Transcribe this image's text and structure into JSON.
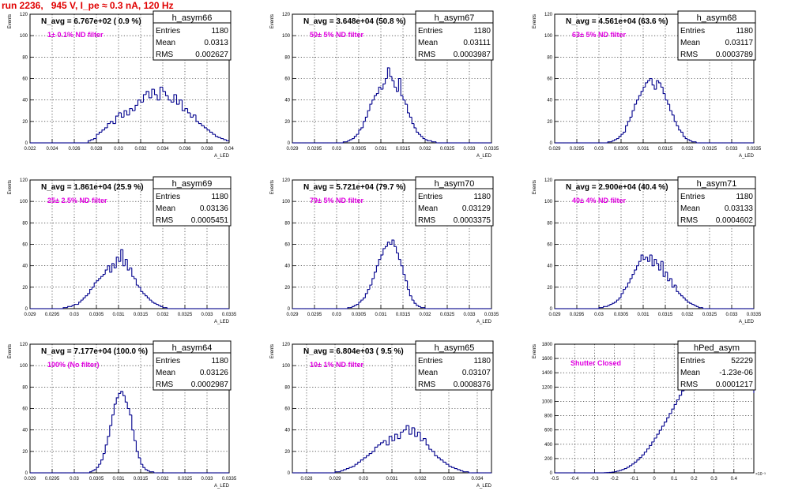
{
  "page_title": "run 2236,   945 V, I_pe ≈ 0.3 nA, 120 Hz",
  "chart_data": [
    {
      "type": "bar",
      "name": "h_asym66",
      "annotation": "N_avg = 6.767e+02 ( 0.9 %)",
      "filter_label": "1± 0.1% ND filter",
      "ylabel": "Events",
      "xlabel": "A_LED",
      "xlim": [
        0.022,
        0.04
      ],
      "ylim": [
        0,
        120
      ],
      "xticks": [
        "0.022",
        "0.024",
        "0.026",
        "0.028",
        "0.03",
        "0.032",
        "0.034",
        "0.036",
        "0.038",
        "0.04"
      ],
      "yticks": [
        "0",
        "20",
        "40",
        "60",
        "80",
        "100",
        "120"
      ],
      "stats": {
        "title": "h_asym66",
        "rows": [
          [
            "Entries",
            "1180"
          ],
          [
            "Mean",
            "0.0313"
          ],
          [
            "RMS",
            "0.002627"
          ]
        ]
      },
      "x_start": 0.022,
      "bin_width": 0.00025,
      "values": [
        0,
        0,
        0,
        0,
        0,
        0,
        0,
        0,
        0,
        0,
        0,
        0,
        0,
        0,
        0,
        0,
        0,
        0,
        0,
        0,
        0,
        2,
        3,
        4,
        8,
        10,
        12,
        14,
        18,
        20,
        18,
        25,
        28,
        24,
        30,
        26,
        32,
        30,
        35,
        40,
        38,
        45,
        48,
        42,
        50,
        45,
        40,
        52,
        48,
        44,
        40,
        38,
        45,
        36,
        40,
        30,
        32,
        28,
        24,
        26,
        20,
        18,
        16,
        14,
        12,
        10,
        8,
        6,
        5,
        4,
        3,
        2,
        2,
        1,
        1,
        0
      ]
    },
    {
      "type": "bar",
      "name": "h_asym67",
      "annotation": "N_avg = 3.648e+04 (50.8 %)",
      "filter_label": "50± 5% ND filter",
      "ylabel": "Events",
      "xlabel": "A_LED",
      "xlim": [
        0.029,
        0.0335
      ],
      "ylim": [
        0,
        120
      ],
      "xticks": [
        "0.029",
        "0.0295",
        "0.03",
        "0.0305",
        "0.031",
        "0.0315",
        "0.032",
        "0.0325",
        "0.033",
        "0.0335"
      ],
      "yticks": [
        "0",
        "20",
        "40",
        "60",
        "80",
        "100",
        "120"
      ],
      "stats": {
        "title": "h_asym67",
        "rows": [
          [
            "Entries",
            "1180"
          ],
          [
            "Mean",
            "0.03111"
          ],
          [
            "RMS",
            "0.0003987"
          ]
        ]
      },
      "x_start": 0.029,
      "bin_width": 5e-05,
      "values": [
        0,
        0,
        0,
        0,
        0,
        0,
        0,
        0,
        0,
        0,
        0,
        0,
        0,
        0,
        0,
        0,
        0,
        0,
        0,
        0,
        0,
        0,
        0,
        1,
        1,
        2,
        3,
        4,
        6,
        8,
        12,
        14,
        20,
        24,
        30,
        36,
        40,
        44,
        46,
        52,
        50,
        55,
        60,
        70,
        62,
        58,
        52,
        48,
        60,
        44,
        40,
        36,
        28,
        24,
        18,
        14,
        10,
        8,
        6,
        4,
        3,
        2,
        2,
        1,
        1,
        0,
        0,
        0,
        0,
        0,
        0,
        0,
        0,
        0,
        0,
        0,
        0,
        0,
        0,
        0,
        0,
        0,
        0,
        0,
        0,
        0,
        0,
        0,
        0,
        0
      ]
    },
    {
      "type": "bar",
      "name": "h_asym68",
      "annotation": "N_avg = 4.561e+04 (63.6 %)",
      "filter_label": "63± 5% ND filter",
      "ylabel": "Events",
      "xlabel": "A_LED",
      "xlim": [
        0.029,
        0.0335
      ],
      "ylim": [
        0,
        120
      ],
      "xticks": [
        "0.029",
        "0.0295",
        "0.03",
        "0.0305",
        "0.031",
        "0.0315",
        "0.032",
        "0.0325",
        "0.033",
        "0.0335"
      ],
      "yticks": [
        "0",
        "20",
        "40",
        "60",
        "80",
        "100",
        "120"
      ],
      "stats": {
        "title": "h_asym68",
        "rows": [
          [
            "Entries",
            "1180"
          ],
          [
            "Mean",
            "0.03117"
          ],
          [
            "RMS",
            "0.0003789"
          ]
        ]
      },
      "x_start": 0.029,
      "bin_width": 5e-05,
      "values": [
        0,
        0,
        0,
        0,
        0,
        0,
        0,
        0,
        0,
        0,
        0,
        0,
        0,
        0,
        0,
        0,
        0,
        0,
        0,
        0,
        0,
        0,
        0,
        0,
        1,
        1,
        2,
        3,
        4,
        6,
        8,
        10,
        16,
        20,
        24,
        30,
        36,
        40,
        44,
        48,
        52,
        56,
        58,
        60,
        54,
        50,
        58,
        56,
        52,
        46,
        40,
        36,
        30,
        26,
        20,
        16,
        12,
        10,
        6,
        4,
        3,
        2,
        1,
        1,
        0,
        0,
        0,
        0,
        0,
        0,
        0,
        0,
        0,
        0,
        0,
        0,
        0,
        0,
        0,
        0,
        0,
        0,
        0,
        0,
        0,
        0,
        0,
        0,
        0,
        0
      ]
    },
    {
      "type": "bar",
      "name": "h_asym69",
      "annotation": "N_avg = 1.861e+04 (25.9 %)",
      "filter_label": "25± 2.5% ND filter",
      "ylabel": "Events",
      "xlabel": "A_LED",
      "xlim": [
        0.029,
        0.0335
      ],
      "ylim": [
        0,
        120
      ],
      "xticks": [
        "0.029",
        "0.0295",
        "0.03",
        "0.0305",
        "0.031",
        "0.0315",
        "0.032",
        "0.0325",
        "0.033",
        "0.0335"
      ],
      "yticks": [
        "0",
        "20",
        "40",
        "60",
        "80",
        "100",
        "120"
      ],
      "stats": {
        "title": "h_asym69",
        "rows": [
          [
            "Entries",
            "1180"
          ],
          [
            "Mean",
            "0.03136"
          ],
          [
            "RMS",
            "0.0005451"
          ]
        ]
      },
      "x_start": 0.029,
      "bin_width": 5e-05,
      "values": [
        0,
        0,
        0,
        0,
        0,
        0,
        0,
        0,
        0,
        0,
        0,
        0,
        0,
        0,
        0,
        1,
        1,
        2,
        2,
        3,
        4,
        4,
        6,
        8,
        10,
        12,
        14,
        18,
        20,
        24,
        26,
        28,
        30,
        32,
        36,
        40,
        34,
        42,
        38,
        48,
        44,
        55,
        40,
        46,
        36,
        38,
        30,
        28,
        22,
        20,
        16,
        14,
        12,
        10,
        8,
        6,
        5,
        4,
        3,
        2,
        1,
        1,
        0,
        0,
        0,
        0,
        0,
        0,
        0,
        0,
        0,
        0,
        0,
        0,
        0,
        0,
        0,
        0,
        0,
        0,
        0,
        0,
        0,
        0,
        0,
        0,
        0,
        0,
        0,
        0
      ]
    },
    {
      "type": "bar",
      "name": "h_asym70",
      "annotation": "N_avg = 5.721e+04 (79.7 %)",
      "filter_label": "79± 5% ND filter",
      "ylabel": "Events",
      "xlabel": "A_LED",
      "xlim": [
        0.029,
        0.0335
      ],
      "ylim": [
        0,
        120
      ],
      "xticks": [
        "0.029",
        "0.0295",
        "0.03",
        "0.0305",
        "0.031",
        "0.0315",
        "0.032",
        "0.0325",
        "0.033",
        "0.0335"
      ],
      "yticks": [
        "0",
        "20",
        "40",
        "60",
        "80",
        "100",
        "120"
      ],
      "stats": {
        "title": "h_asym70",
        "rows": [
          [
            "Entries",
            "1180"
          ],
          [
            "Mean",
            "0.03129"
          ],
          [
            "RMS",
            "0.0003375"
          ]
        ]
      },
      "x_start": 0.029,
      "bin_width": 5e-05,
      "values": [
        0,
        0,
        0,
        0,
        0,
        0,
        0,
        0,
        0,
        0,
        0,
        0,
        0,
        0,
        0,
        0,
        0,
        0,
        0,
        0,
        0,
        0,
        0,
        0,
        0,
        1,
        1,
        2,
        3,
        4,
        6,
        8,
        10,
        14,
        18,
        22,
        28,
        34,
        40,
        46,
        50,
        56,
        58,
        62,
        60,
        64,
        58,
        52,
        46,
        40,
        32,
        26,
        18,
        12,
        8,
        5,
        3,
        2,
        1,
        1,
        0,
        0,
        0,
        0,
        0,
        0,
        0,
        0,
        0,
        0,
        0,
        0,
        0,
        0,
        0,
        0,
        0,
        0,
        0,
        0,
        0,
        0,
        0,
        0,
        0,
        0,
        0,
        0,
        0,
        0
      ]
    },
    {
      "type": "bar",
      "name": "h_asym71",
      "annotation": "N_avg = 2.900e+04 (40.4 %)",
      "filter_label": "40± 4% ND filter",
      "ylabel": "Events",
      "xlabel": "A_LED",
      "xlim": [
        0.029,
        0.0335
      ],
      "ylim": [
        0,
        120
      ],
      "xticks": [
        "0.029",
        "0.0295",
        "0.03",
        "0.0305",
        "0.031",
        "0.0315",
        "0.032",
        "0.0325",
        "0.033",
        "0.0335"
      ],
      "yticks": [
        "0",
        "20",
        "40",
        "60",
        "80",
        "100",
        "120"
      ],
      "stats": {
        "title": "h_asym71",
        "rows": [
          [
            "Entries",
            "1180"
          ],
          [
            "Mean",
            "0.03133"
          ],
          [
            "RMS",
            "0.0004602"
          ]
        ]
      },
      "x_start": 0.029,
      "bin_width": 5e-05,
      "values": [
        0,
        0,
        0,
        0,
        0,
        0,
        0,
        0,
        0,
        0,
        0,
        0,
        0,
        0,
        0,
        0,
        0,
        0,
        0,
        0,
        1,
        1,
        2,
        2,
        3,
        4,
        5,
        6,
        8,
        10,
        14,
        18,
        20,
        24,
        28,
        32,
        36,
        40,
        44,
        50,
        46,
        48,
        44,
        50,
        40,
        46,
        42,
        36,
        44,
        30,
        34,
        26,
        28,
        20,
        22,
        16,
        14,
        12,
        10,
        8,
        6,
        5,
        4,
        3,
        2,
        1,
        1,
        0,
        0,
        0,
        0,
        0,
        0,
        0,
        0,
        0,
        0,
        0,
        0,
        0,
        0,
        0,
        0,
        0,
        0,
        0,
        0,
        0,
        0,
        0
      ]
    },
    {
      "type": "bar",
      "name": "h_asym64",
      "annotation": "N_avg = 7.177e+04 (100.0 %)",
      "filter_label": "100% (No filter)",
      "ylabel": "Events",
      "xlabel": "A_LED",
      "xlim": [
        0.029,
        0.0335
      ],
      "ylim": [
        0,
        120
      ],
      "xticks": [
        "0.029",
        "0.0295",
        "0.03",
        "0.0305",
        "0.031",
        "0.0315",
        "0.032",
        "0.0325",
        "0.033",
        "0.0335"
      ],
      "yticks": [
        "0",
        "20",
        "40",
        "60",
        "80",
        "100",
        "120"
      ],
      "stats": {
        "title": "h_asym64",
        "rows": [
          [
            "Entries",
            "1180"
          ],
          [
            "Mean",
            "0.03126"
          ],
          [
            "RMS",
            "0.0002987"
          ]
        ]
      },
      "x_start": 0.029,
      "bin_width": 5e-05,
      "values": [
        0,
        0,
        0,
        0,
        0,
        0,
        0,
        0,
        0,
        0,
        0,
        0,
        0,
        0,
        0,
        0,
        0,
        0,
        0,
        0,
        0,
        0,
        0,
        0,
        0,
        0,
        0,
        1,
        2,
        3,
        5,
        8,
        12,
        18,
        26,
        34,
        44,
        54,
        64,
        70,
        74,
        76,
        72,
        66,
        60,
        54,
        40,
        30,
        20,
        14,
        8,
        5,
        3,
        2,
        1,
        1,
        0,
        0,
        0,
        0,
        0,
        0,
        0,
        0,
        0,
        0,
        0,
        0,
        0,
        0,
        0,
        0,
        0,
        0,
        0,
        0,
        0,
        0,
        0,
        0,
        0,
        0,
        0,
        0,
        0,
        0,
        0,
        0,
        0,
        0
      ]
    },
    {
      "type": "bar",
      "name": "h_asym65",
      "annotation": "N_avg = 6.804e+03 ( 9.5 %)",
      "filter_label": "10± 1% ND filter",
      "ylabel": "Events",
      "xlabel": "A_LED",
      "xlim": [
        0.0275,
        0.0345
      ],
      "ylim": [
        0,
        120
      ],
      "xticks": [
        "0.028",
        "0.029",
        "0.03",
        "0.031",
        "0.032",
        "0.033",
        "0.034"
      ],
      "yticks": [
        "0",
        "20",
        "40",
        "60",
        "80",
        "100",
        "120"
      ],
      "stats": {
        "title": "h_asym65",
        "rows": [
          [
            "Entries",
            "1180"
          ],
          [
            "Mean",
            "0.03107"
          ],
          [
            "RMS",
            "0.0008376"
          ]
        ]
      },
      "x_start": 0.0275,
      "bin_width": 0.0001,
      "values": [
        0,
        0,
        0,
        0,
        0,
        0,
        0,
        0,
        0,
        0,
        0,
        0,
        0,
        0,
        0,
        1,
        1,
        2,
        3,
        4,
        5,
        6,
        8,
        10,
        12,
        14,
        16,
        18,
        20,
        24,
        26,
        28,
        30,
        26,
        34,
        30,
        36,
        32,
        38,
        40,
        44,
        36,
        42,
        34,
        38,
        30,
        32,
        26,
        22,
        20,
        16,
        14,
        12,
        10,
        8,
        6,
        5,
        4,
        3,
        2,
        1,
        1,
        0,
        0,
        0,
        0,
        0,
        0,
        0,
        0
      ]
    },
    {
      "type": "bar",
      "name": "hPed_asym",
      "annotation": "",
      "filter_label": "Shutter Closed",
      "ylabel": "Events",
      "xlabel": "",
      "x_exponent": "×10⁻³",
      "xlim": [
        -0.5,
        0.5
      ],
      "ylim": [
        0,
        1800
      ],
      "xticks": [
        "-0.5",
        "-0.4",
        "-0.3",
        "-0.2",
        "-0.1",
        "0",
        "0.1",
        "0.2",
        "0.3",
        "0.4"
      ],
      "yticks": [
        "0",
        "200",
        "400",
        "600",
        "800",
        "1000",
        "1200",
        "1400",
        "1600",
        "1800"
      ],
      "stats": {
        "title": "hPed_asym",
        "rows": [
          [
            "Entries",
            "52229"
          ],
          [
            "Mean",
            "-1.23e-06"
          ],
          [
            "RMS",
            "0.0001217"
          ]
        ]
      },
      "x_start": -0.5,
      "bin_width": 0.0125,
      "values": [
        0,
        0,
        0,
        0,
        0,
        0,
        0,
        0,
        0,
        0,
        0,
        0,
        0,
        0,
        0,
        0,
        0,
        0,
        0,
        0,
        2,
        4,
        6,
        10,
        16,
        24,
        34,
        46,
        60,
        78,
        100,
        124,
        150,
        180,
        214,
        250,
        290,
        334,
        382,
        432,
        486,
        540,
        596,
        652,
        710,
        770,
        830,
        892,
        956,
        1020,
        1084,
        1146,
        1206,
        1262,
        1316,
        1366,
        1412,
        1454,
        1500,
        1540,
        1580,
        1620,
        1650,
        1690,
        1720,
        1750,
        1770,
        1780,
        1760,
        1740,
        1700,
        1660,
        1620,
        1580,
        1520,
        1460,
        1400,
        1330,
        1260,
        1190,
        1116,
        1040,
        964,
        888,
        812,
        740,
        668,
        600,
        534,
        470,
        410,
        354,
        302,
        254,
        212,
        174,
        140,
        112,
        88,
        68,
        52,
        40,
        30,
        22,
        16,
        12,
        8,
        6,
        4,
        3,
        2,
        2,
        1,
        1,
        0,
        0,
        0,
        0,
        0,
        0,
        0,
        0,
        0
      ]
    }
  ]
}
